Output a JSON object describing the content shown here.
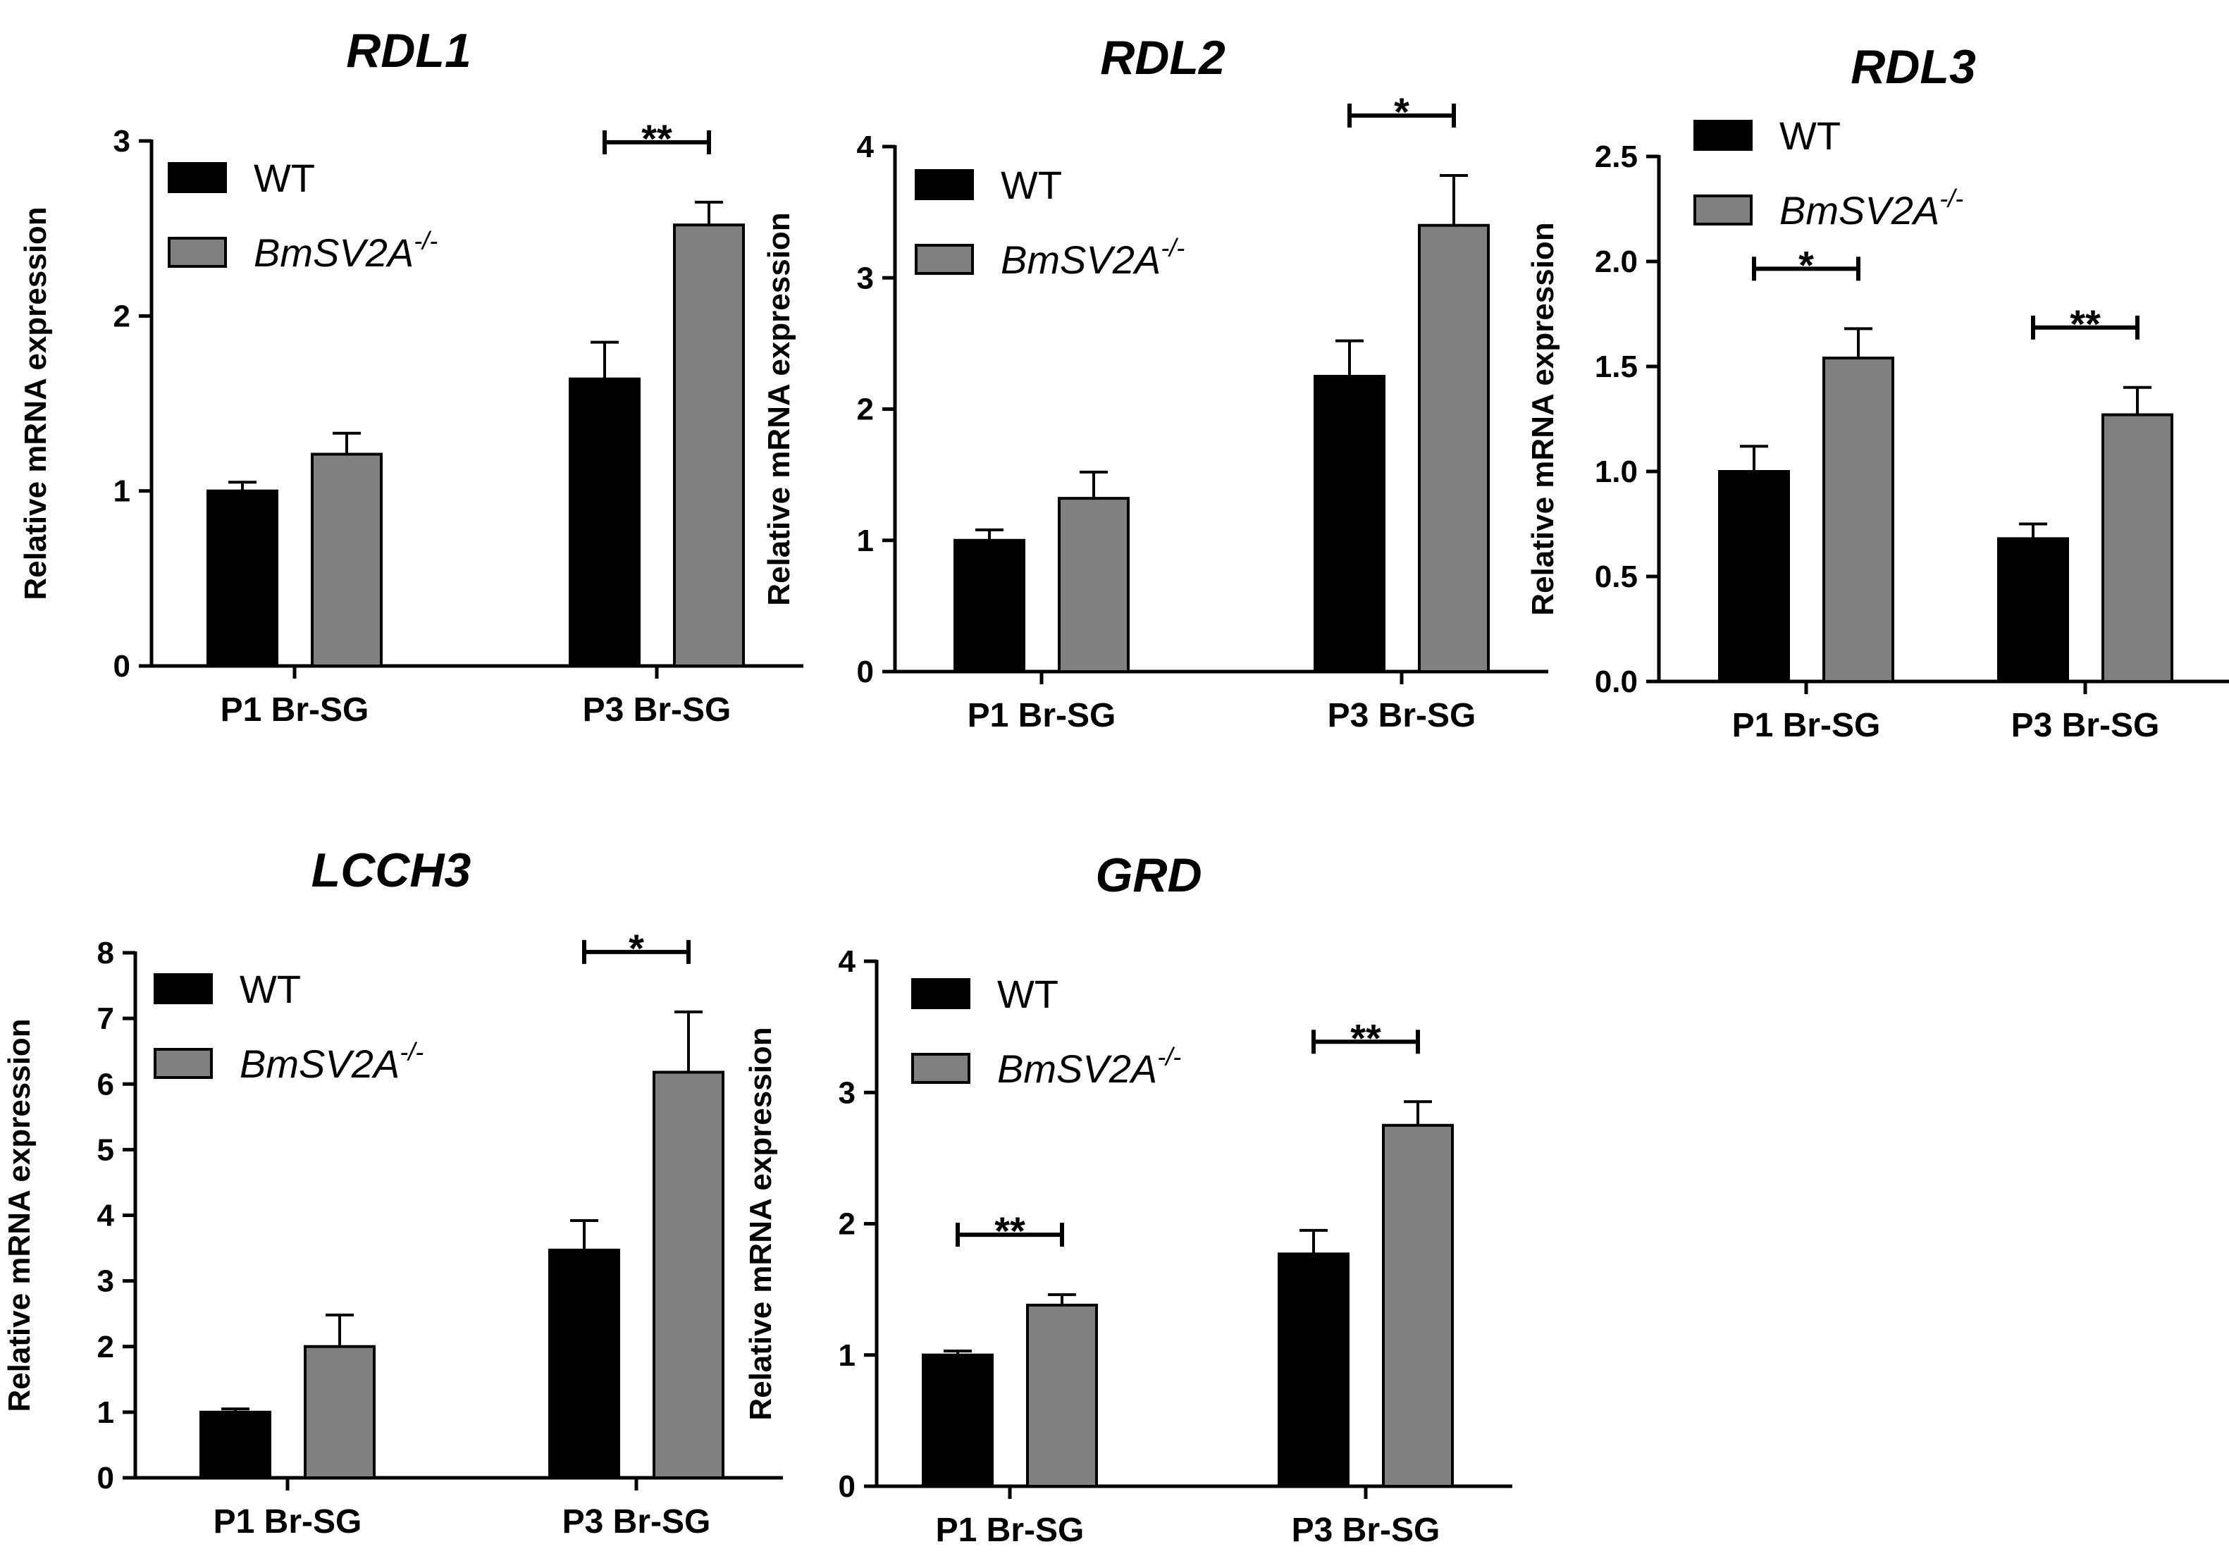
{
  "colors": {
    "wt": "#000000",
    "mutant": "#808080",
    "axis": "#000000"
  },
  "chart_data": [
    {
      "type": "bar",
      "title": "RDL1",
      "ylabel": "Relative mRNA expression",
      "categories": [
        "P1 Br-SG",
        "P3 Br-SG"
      ],
      "ylim": [
        0,
        3
      ],
      "yticks": [
        "0",
        "1",
        "2",
        "3"
      ],
      "legend": {
        "wt": "WT",
        "mutant_base": "BmSV2A",
        "mutant_sup": "-/-",
        "placement": "top-left"
      },
      "series": [
        {
          "name": "WT",
          "values": [
            1.0,
            1.64
          ],
          "errors": [
            0.05,
            0.21
          ]
        },
        {
          "name": "BmSV2A-/-",
          "values": [
            1.21,
            2.52
          ],
          "errors": [
            0.12,
            0.13
          ]
        }
      ],
      "significance": [
        {
          "category": 1,
          "label": "**"
        }
      ]
    },
    {
      "type": "bar",
      "title": "RDL2",
      "ylabel": "Relative mRNA expression",
      "categories": [
        "P1 Br-SG",
        "P3 Br-SG"
      ],
      "ylim": [
        0,
        4
      ],
      "yticks": [
        "0",
        "1",
        "2",
        "3",
        "4"
      ],
      "legend": {
        "wt": "WT",
        "mutant_base": "BmSV2A",
        "mutant_sup": "-/-",
        "placement": "top-left"
      },
      "series": [
        {
          "name": "WT",
          "values": [
            1.0,
            2.25
          ],
          "errors": [
            0.08,
            0.27
          ]
        },
        {
          "name": "BmSV2A-/-",
          "values": [
            1.32,
            3.4
          ],
          "errors": [
            0.2,
            0.38
          ]
        }
      ],
      "significance": [
        {
          "category": 1,
          "label": "*"
        }
      ]
    },
    {
      "type": "bar",
      "title": "RDL3",
      "ylabel": "Relative mRNA expression",
      "categories": [
        "P1 Br-SG",
        "P3 Br-SG"
      ],
      "ylim": [
        0,
        2.5
      ],
      "yticks": [
        "0.0",
        "0.5",
        "1.0",
        "1.5",
        "2.0",
        "2.5"
      ],
      "legend": {
        "wt": "WT",
        "mutant_base": "BmSV2A",
        "mutant_sup": "-/-",
        "placement": "top-left"
      },
      "series": [
        {
          "name": "WT",
          "values": [
            1.0,
            0.68
          ],
          "errors": [
            0.12,
            0.07
          ]
        },
        {
          "name": "BmSV2A-/-",
          "values": [
            1.54,
            1.27
          ],
          "errors": [
            0.14,
            0.13
          ]
        }
      ],
      "significance": [
        {
          "category": 0,
          "label": "*"
        },
        {
          "category": 1,
          "label": "**"
        }
      ]
    },
    {
      "type": "bar",
      "title": "LCCH3",
      "ylabel": "Relative mRNA expression",
      "categories": [
        "P1 Br-SG",
        "P3 Br-SG"
      ],
      "ylim": [
        0,
        8
      ],
      "yticks": [
        "0",
        "1",
        "2",
        "3",
        "4",
        "5",
        "6",
        "7",
        "8"
      ],
      "legend": {
        "wt": "WT",
        "mutant_base": "BmSV2A",
        "mutant_sup": "-/-",
        "placement": "top-left"
      },
      "series": [
        {
          "name": "WT",
          "values": [
            1.0,
            3.47
          ],
          "errors": [
            0.05,
            0.45
          ]
        },
        {
          "name": "BmSV2A-/-",
          "values": [
            2.0,
            6.18
          ],
          "errors": [
            0.48,
            0.92
          ]
        }
      ],
      "significance": [
        {
          "category": 1,
          "label": "*"
        }
      ]
    },
    {
      "type": "bar",
      "title": "GRD",
      "ylabel": "Relative mRNA expression",
      "categories": [
        "P1 Br-SG",
        "P3 Br-SG"
      ],
      "ylim": [
        0,
        4
      ],
      "yticks": [
        "0",
        "1",
        "2",
        "3",
        "4"
      ],
      "legend": {
        "wt": "WT",
        "mutant_base": "BmSV2A",
        "mutant_sup": "-/-",
        "placement": "top-left"
      },
      "series": [
        {
          "name": "WT",
          "values": [
            1.0,
            1.77
          ],
          "errors": [
            0.03,
            0.18
          ]
        },
        {
          "name": "BmSV2A-/-",
          "values": [
            1.38,
            2.75
          ],
          "errors": [
            0.08,
            0.18
          ]
        }
      ],
      "significance": [
        {
          "category": 0,
          "label": "**"
        },
        {
          "category": 1,
          "label": "**"
        }
      ]
    }
  ]
}
